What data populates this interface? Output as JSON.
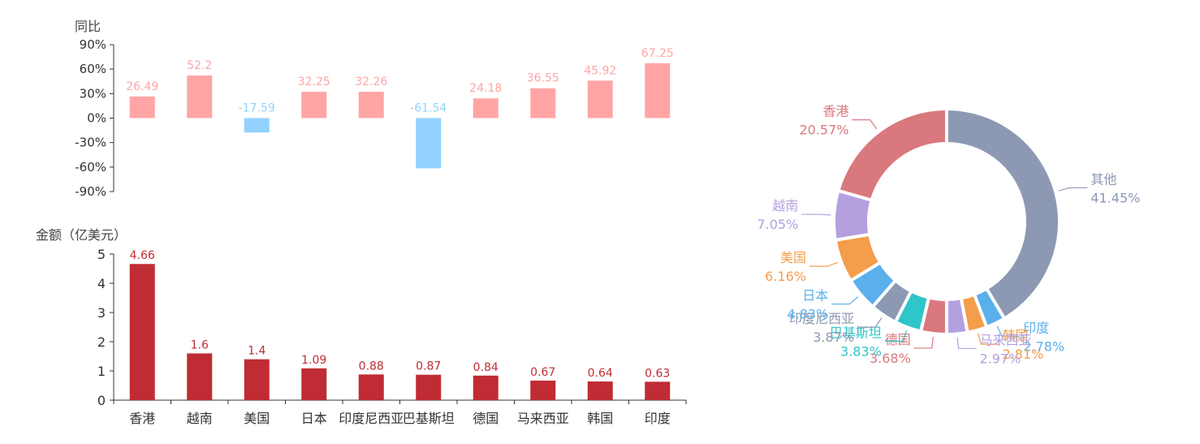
{
  "chart_data": [
    {
      "type": "bar",
      "ylabel": "同比",
      "ylim": [
        -90,
        90
      ],
      "yticks": [
        "90%",
        "60%",
        "30%",
        "0%",
        "-30%",
        "-60%",
        "-90%"
      ],
      "categories": [
        "香港",
        "越南",
        "美国",
        "日本",
        "印度尼西亚",
        "巴基斯坦",
        "德国",
        "马来西亚",
        "韩国",
        "印度"
      ],
      "values": [
        26.49,
        52.2,
        -17.59,
        32.25,
        32.26,
        -61.54,
        24.18,
        36.55,
        45.92,
        67.25
      ],
      "colors": {
        "positive": "#ffa5a6",
        "negative": "#93d2ff"
      }
    },
    {
      "type": "bar",
      "ylabel": "金额（亿美元）",
      "ylim": [
        0,
        5
      ],
      "yticks": [
        "5",
        "4",
        "3",
        "2",
        "1",
        "0"
      ],
      "categories": [
        "香港",
        "越南",
        "美国",
        "日本",
        "印度尼西亚",
        "巴基斯坦",
        "德国",
        "马来西亚",
        "韩国",
        "印度"
      ],
      "values": [
        4.66,
        1.6,
        1.4,
        1.09,
        0.88,
        0.87,
        0.84,
        0.67,
        0.64,
        0.63
      ],
      "colors": {
        "bar": "#c02c33",
        "label": "#c02c33"
      }
    },
    {
      "type": "pie",
      "donut": true,
      "slices": [
        {
          "label": "其他",
          "value": 41.45,
          "display": "41.45%",
          "color": "#8d99b3"
        },
        {
          "label": "印度",
          "value": 2.78,
          "display": "2.78%",
          "color": "#59b0eb"
        },
        {
          "label": "韩国",
          "value": 2.81,
          "display": "2.81%",
          "color": "#f49d4a"
        },
        {
          "label": "马来西亚",
          "value": 2.97,
          "display": "2.97%",
          "color": "#b4a0df"
        },
        {
          "label": "德国",
          "value": 3.68,
          "display": "3.68%",
          "color": "#d9787d"
        },
        {
          "label": "巴基斯坦",
          "value": 3.83,
          "display": "3.83%",
          "color": "#2ec6c9"
        },
        {
          "label": "印度尼西亚",
          "value": 3.87,
          "display": "3.87%",
          "color": "#8d99b3"
        },
        {
          "label": "日本",
          "value": 4.83,
          "display": "4.83%",
          "color": "#59b0eb"
        },
        {
          "label": "美国",
          "value": 6.16,
          "display": "6.16%",
          "color": "#f49d4a"
        },
        {
          "label": "越南",
          "value": 7.05,
          "display": "7.05%",
          "color": "#b4a0df"
        },
        {
          "label": "香港",
          "value": 20.57,
          "display": "20.57%",
          "color": "#d9787d"
        }
      ]
    }
  ]
}
